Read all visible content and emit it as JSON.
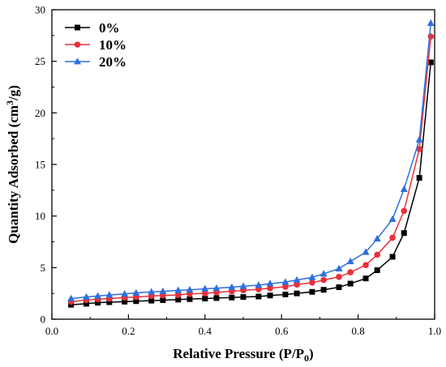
{
  "chart_data": {
    "type": "line",
    "title": "",
    "xlabel_main": "Relative Pressure (P/P",
    "xlabel_sub": "0",
    "xlabel_end": ")",
    "ylabel_main": "Quantity Adsorbed (cm",
    "ylabel_sup": "3",
    "ylabel_end": "/g)",
    "xlim": [
      0.0,
      1.0
    ],
    "ylim": [
      0,
      30
    ],
    "xticks": [
      0.0,
      0.2,
      0.4,
      0.6,
      0.8,
      1.0
    ],
    "xtick_labels": [
      "0.0",
      "0.2",
      "0.4",
      "0.6",
      "0.8",
      "1.0"
    ],
    "yticks": [
      0,
      5,
      10,
      15,
      20,
      25,
      30
    ],
    "ytick_labels": [
      "0",
      "5",
      "10",
      "15",
      "20",
      "25",
      "30"
    ],
    "grid": false,
    "legend_position": "top-left",
    "x": [
      0.05,
      0.09,
      0.12,
      0.15,
      0.19,
      0.22,
      0.26,
      0.29,
      0.33,
      0.36,
      0.4,
      0.43,
      0.47,
      0.5,
      0.54,
      0.57,
      0.61,
      0.64,
      0.68,
      0.71,
      0.75,
      0.78,
      0.82,
      0.85,
      0.89,
      0.92,
      0.96,
      0.99
    ],
    "series": [
      {
        "name": "0%",
        "color": "#000000",
        "marker": "square",
        "values": [
          1.4,
          1.5,
          1.6,
          1.65,
          1.7,
          1.75,
          1.8,
          1.85,
          1.9,
          1.95,
          2.0,
          2.05,
          2.1,
          2.15,
          2.2,
          2.3,
          2.4,
          2.5,
          2.65,
          2.85,
          3.1,
          3.45,
          3.95,
          4.75,
          6.05,
          8.35,
          13.7,
          24.9
        ]
      },
      {
        "name": "10%",
        "color": "#e8303a",
        "marker": "circle",
        "values": [
          1.7,
          1.85,
          1.95,
          2.0,
          2.1,
          2.15,
          2.25,
          2.3,
          2.35,
          2.45,
          2.5,
          2.6,
          2.7,
          2.8,
          2.9,
          3.0,
          3.15,
          3.35,
          3.55,
          3.8,
          4.1,
          4.55,
          5.25,
          6.25,
          7.9,
          10.5,
          16.5,
          27.4
        ]
      },
      {
        "name": "20%",
        "color": "#2f6fe0",
        "marker": "triangle",
        "values": [
          2.0,
          2.15,
          2.25,
          2.35,
          2.45,
          2.55,
          2.65,
          2.7,
          2.8,
          2.85,
          2.95,
          3.0,
          3.1,
          3.2,
          3.3,
          3.45,
          3.6,
          3.8,
          4.05,
          4.4,
          4.9,
          5.6,
          6.5,
          7.8,
          9.7,
          12.6,
          17.4,
          28.7
        ]
      }
    ]
  }
}
